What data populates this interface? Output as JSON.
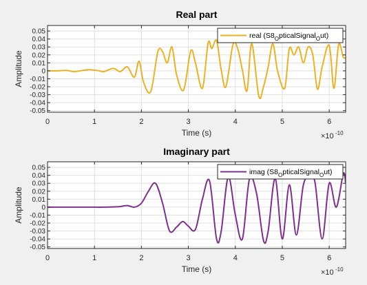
{
  "window": {
    "background": "#f0f0f0"
  },
  "chart_data": [
    {
      "type": "line",
      "title": "Real part",
      "xlabel": "Time (s)",
      "ylabel": "Amplitude",
      "x_exponent_label": "×10",
      "x_exponent_power": "-10",
      "xlim": [
        0,
        6.35
      ],
      "ylim": [
        -0.052,
        0.057
      ],
      "xticks": [
        "0",
        "1",
        "2",
        "3",
        "4",
        "5",
        "6"
      ],
      "xtick_values": [
        0,
        1,
        2,
        3,
        4,
        5,
        6
      ],
      "yticks": [
        "-0.05",
        "-0.04",
        "-0.03",
        "-0.02",
        "-0.01",
        "0",
        "0.01",
        "0.02",
        "0.03",
        "0.04",
        "0.05"
      ],
      "ytick_values": [
        -0.05,
        -0.04,
        -0.03,
        -0.02,
        -0.01,
        0,
        0.01,
        0.02,
        0.03,
        0.04,
        0.05
      ],
      "grid": true,
      "legend": {
        "location": "top-right",
        "main": "real (S8",
        "sub1": "O",
        "mid": "pticalSignal",
        "sub2": "O",
        "tail": "ut)"
      },
      "series": [
        {
          "name": "real (S8_OpticalSignal_Out)",
          "color": "#EDB120",
          "x": [
            0,
            0.2,
            0.4,
            0.55,
            0.7,
            0.9,
            1.1,
            1.2,
            1.4,
            1.55,
            1.7,
            1.85,
            1.95,
            2.05,
            2.2,
            2.35,
            2.45,
            2.55,
            2.65,
            2.75,
            2.9,
            3.05,
            3.15,
            3.3,
            3.42,
            3.5,
            3.6,
            3.7,
            3.8,
            3.95,
            4.05,
            4.15,
            4.25,
            4.35,
            4.5,
            4.6,
            4.7,
            4.8,
            4.9,
            5.05,
            5.15,
            5.25,
            5.35,
            5.45,
            5.55,
            5.65,
            5.75,
            5.85,
            6.0,
            6.1,
            6.2,
            6.3,
            6.35
          ],
          "y": [
            0,
            0,
            0.0005,
            -0.001,
            0,
            0.0015,
            0,
            -0.001,
            0.003,
            -0.001,
            0.005,
            -0.008,
            0.012,
            -0.015,
            -0.026,
            0.024,
            0.024,
            0.01,
            0.03,
            -0.005,
            -0.024,
            0.025,
            0.01,
            -0.022,
            0.035,
            0.028,
            0.038,
            0.001,
            -0.02,
            0.033,
            0.028,
            0.001,
            -0.025,
            0.034,
            -0.032,
            -0.02,
            0.005,
            0.034,
            0.0,
            -0.022,
            0.028,
            0.02,
            0.03,
            0.01,
            0.03,
            0.02,
            -0.023,
            0.005,
            0.032,
            -0.022,
            0.033,
            0.017,
            0.017
          ]
        }
      ]
    },
    {
      "type": "line",
      "title": "Imaginary part",
      "xlabel": "Time (s)",
      "ylabel": "Amplitude",
      "x_exponent_label": "×10",
      "x_exponent_power": "-10",
      "xlim": [
        0,
        6.35
      ],
      "ylim": [
        -0.052,
        0.057
      ],
      "xticks": [
        "0",
        "1",
        "2",
        "3",
        "4",
        "5",
        "6"
      ],
      "xtick_values": [
        0,
        1,
        2,
        3,
        4,
        5,
        6
      ],
      "yticks": [
        "-0.05",
        "-0.04",
        "-0.03",
        "-0.02",
        "-0.01",
        "0",
        "0.01",
        "0.02",
        "0.03",
        "0.04",
        "0.05"
      ],
      "ytick_values": [
        -0.05,
        -0.04,
        -0.03,
        -0.02,
        -0.01,
        0,
        0.01,
        0.02,
        0.03,
        0.04,
        0.05
      ],
      "grid": true,
      "legend": {
        "location": "top-right",
        "main": "imag (S8",
        "sub1": "O",
        "mid": "pticalSignal",
        "sub2": "O",
        "tail": "ut)"
      },
      "series": [
        {
          "name": "imag (S8_OpticalSignal_Out)",
          "color": "#7E2F8E",
          "x": [
            0,
            0.3,
            0.6,
            0.9,
            1.2,
            1.5,
            1.7,
            1.85,
            2.0,
            2.15,
            2.3,
            2.45,
            2.6,
            2.75,
            2.88,
            3.0,
            3.15,
            3.3,
            3.45,
            3.6,
            3.7,
            3.85,
            4.0,
            4.15,
            4.3,
            4.45,
            4.6,
            4.7,
            4.85,
            5.0,
            5.15,
            5.3,
            5.45,
            5.6,
            5.7,
            5.85,
            6.0,
            6.15,
            6.3,
            6.35
          ],
          "y": [
            0,
            0,
            0,
            0,
            0,
            0.0005,
            0.002,
            0,
            0.005,
            0.02,
            0.03,
            0.005,
            -0.03,
            -0.025,
            -0.018,
            -0.024,
            -0.028,
            0.01,
            0.033,
            -0.04,
            -0.03,
            0.038,
            -0.01,
            -0.04,
            0.035,
            0.018,
            -0.042,
            -0.03,
            0.036,
            -0.04,
            0.028,
            -0.035,
            0.028,
            0.04,
            0.03,
            -0.04,
            0.03,
            0.0,
            0.042,
            0.03
          ]
        }
      ]
    }
  ]
}
